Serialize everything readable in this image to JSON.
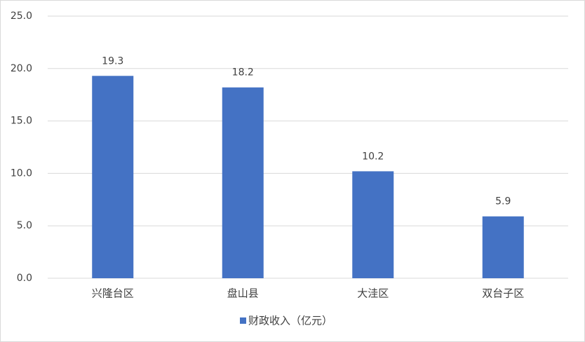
{
  "chart_data": {
    "type": "bar",
    "categories": [
      "兴隆台区",
      "盘山县",
      "大洼区",
      "双台子区"
    ],
    "series": [
      {
        "name": "财政收入（亿元）",
        "color": "#4472c4",
        "values": [
          19.3,
          18.2,
          10.2,
          5.9
        ]
      }
    ],
    "ylim": [
      0,
      25
    ],
    "yticks": [
      {
        "value": 0,
        "label": "0.0"
      },
      {
        "value": 5,
        "label": "5.0"
      },
      {
        "value": 10,
        "label": "10.0"
      },
      {
        "value": 15,
        "label": "15.0"
      },
      {
        "value": 20,
        "label": "20.0"
      },
      {
        "value": 25,
        "label": "25.0"
      }
    ],
    "grid": true,
    "legend": "bottom"
  }
}
